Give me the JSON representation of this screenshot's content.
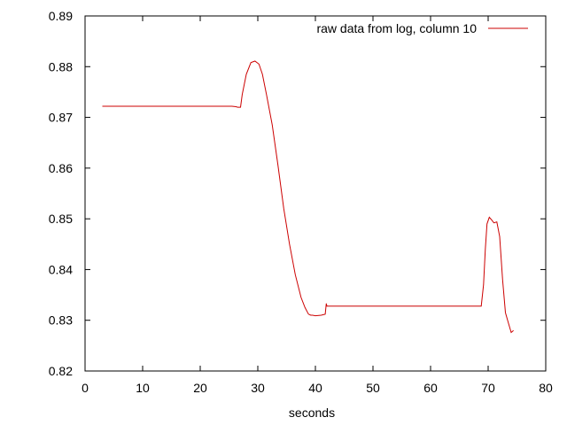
{
  "chart_data": {
    "type": "line",
    "title": "",
    "xlabel": "seconds",
    "ylabel": "",
    "xlim": [
      0,
      80
    ],
    "ylim": [
      0.82,
      0.89
    ],
    "x_ticks": [
      "0",
      "10",
      "20",
      "30",
      "40",
      "50",
      "60",
      "70",
      "80"
    ],
    "y_ticks": [
      "0.82",
      "0.83",
      "0.84",
      "0.85",
      "0.86",
      "0.87",
      "0.88",
      "0.89"
    ],
    "grid": false,
    "legend_position": "top-right",
    "colors": {
      "series": "#cc0000",
      "axis": "#000000"
    },
    "series": [
      {
        "name": "raw data from log, column 10",
        "x": [
          3.0,
          10,
          20,
          25.5,
          26.2,
          26.5,
          27.0,
          27.3,
          28.0,
          28.8,
          29.5,
          30.2,
          30.8,
          31.5,
          32.5,
          33.5,
          34.5,
          35.5,
          36.5,
          37.5,
          38.2,
          38.8,
          39.2,
          39.5,
          40.0,
          41.0,
          41.7,
          41.9,
          42.0,
          50,
          60,
          68.8,
          69.2,
          69.5,
          69.8,
          70.2,
          70.6,
          71.0,
          71.5,
          72.0,
          72.5,
          73.0,
          73.5,
          74.0,
          74.4
        ],
        "y": [
          0.8722,
          0.8722,
          0.8722,
          0.8722,
          0.8721,
          0.872,
          0.872,
          0.8745,
          0.8785,
          0.8808,
          0.8811,
          0.8805,
          0.8785,
          0.8745,
          0.8685,
          0.8605,
          0.852,
          0.845,
          0.839,
          0.8345,
          0.8325,
          0.8312,
          0.831,
          0.831,
          0.8309,
          0.831,
          0.8312,
          0.8333,
          0.8328,
          0.8328,
          0.8328,
          0.8328,
          0.837,
          0.844,
          0.849,
          0.8503,
          0.8498,
          0.8492,
          0.8494,
          0.8465,
          0.838,
          0.8315,
          0.8295,
          0.8276,
          0.828
        ]
      }
    ]
  }
}
